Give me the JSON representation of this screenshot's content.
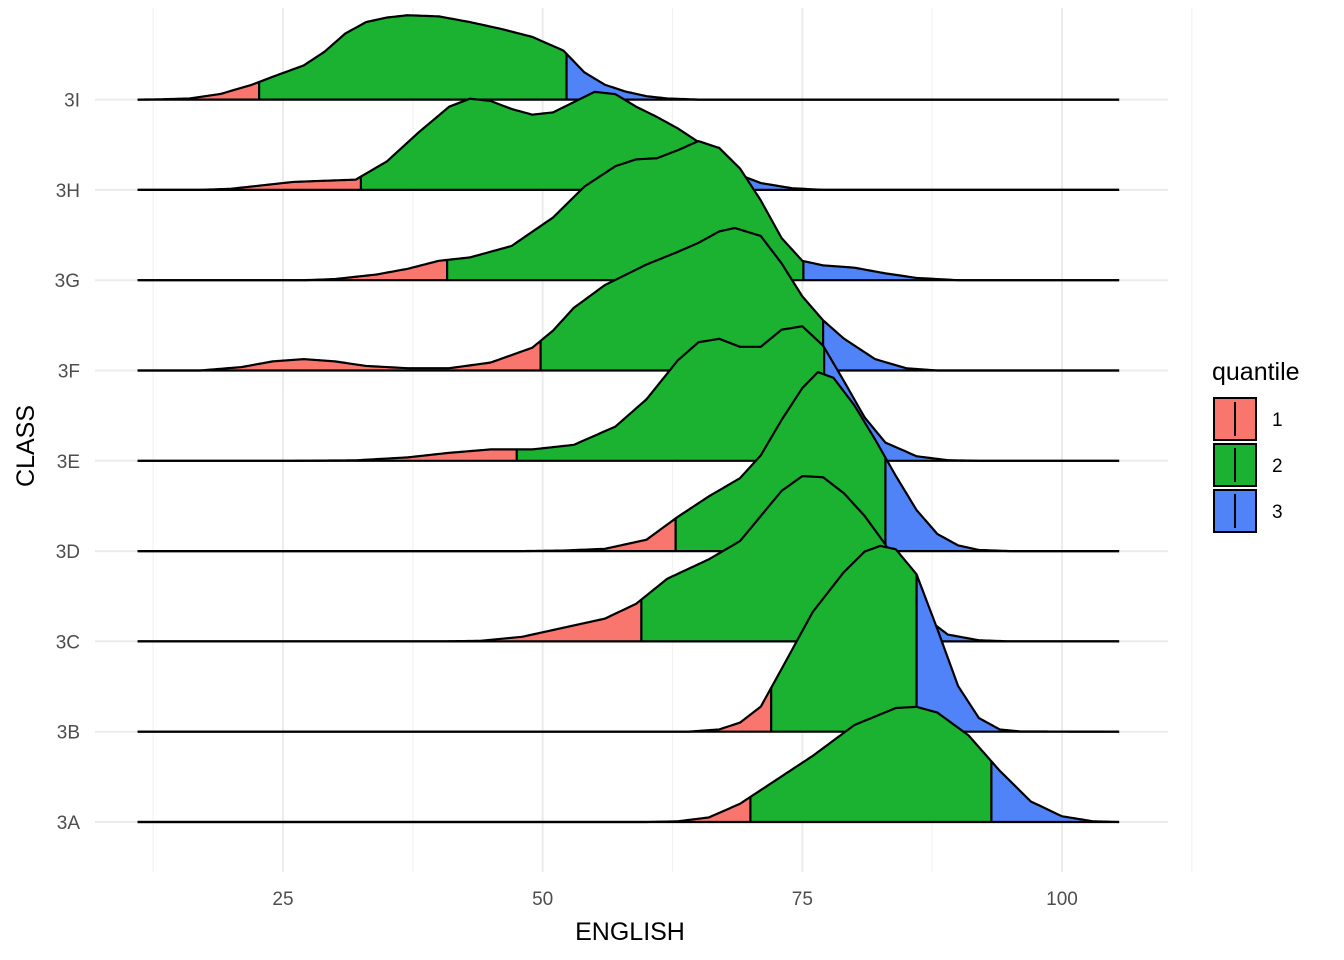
{
  "chart_data": {
    "type": "ridgeline",
    "title": "",
    "xlabel": "ENGLISH",
    "ylabel": "CLASS",
    "xlim": [
      10,
      108
    ],
    "xticks": [
      25,
      50,
      75,
      100
    ],
    "grid": true,
    "legend": {
      "title": "quantile",
      "position": "right",
      "entries": [
        {
          "label": "1",
          "color": "#F8766D"
        },
        {
          "label": "2",
          "color": "#1AB230"
        },
        {
          "label": "3",
          "color": "#5083F7"
        }
      ]
    },
    "categories": [
      "3A",
      "3B",
      "3C",
      "3D",
      "3E",
      "3F",
      "3G",
      "3H",
      "3I"
    ],
    "series": [
      {
        "class": "3A",
        "q1": 70,
        "q2": 93.2,
        "density": [
          [
            11,
            0
          ],
          [
            60,
            0
          ],
          [
            63,
            0.006
          ],
          [
            66,
            0.04
          ],
          [
            69,
            0.16
          ],
          [
            72,
            0.34
          ],
          [
            76,
            0.58
          ],
          [
            80,
            0.85
          ],
          [
            84,
            1.0
          ],
          [
            86,
            1.01
          ],
          [
            88,
            0.96
          ],
          [
            91,
            0.76
          ],
          [
            94,
            0.45
          ],
          [
            97,
            0.18
          ],
          [
            100,
            0.05
          ],
          [
            103,
            0.006
          ],
          [
            105.5,
            0
          ]
        ]
      },
      {
        "class": "3B",
        "q1": 72,
        "q2": 86,
        "density": [
          [
            11,
            0
          ],
          [
            64,
            0
          ],
          [
            67,
            0.02
          ],
          [
            69,
            0.08
          ],
          [
            71,
            0.22
          ],
          [
            73,
            0.55
          ],
          [
            76,
            1.05
          ],
          [
            79,
            1.4
          ],
          [
            81,
            1.58
          ],
          [
            82.5,
            1.63
          ],
          [
            84,
            1.6
          ],
          [
            86,
            1.38
          ],
          [
            88,
            0.9
          ],
          [
            90,
            0.4
          ],
          [
            92,
            0.12
          ],
          [
            94,
            0.02
          ],
          [
            96,
            0.002
          ],
          [
            105.5,
            0
          ]
        ]
      },
      {
        "class": "3C",
        "q1": 59.5,
        "q2": 86,
        "density": [
          [
            11,
            0
          ],
          [
            40,
            0
          ],
          [
            44,
            0.005
          ],
          [
            48,
            0.04
          ],
          [
            52,
            0.12
          ],
          [
            56,
            0.2
          ],
          [
            59,
            0.33
          ],
          [
            62,
            0.55
          ],
          [
            66,
            0.72
          ],
          [
            69,
            0.88
          ],
          [
            71,
            1.1
          ],
          [
            73,
            1.32
          ],
          [
            75,
            1.45
          ],
          [
            77,
            1.44
          ],
          [
            79,
            1.3
          ],
          [
            81,
            1.1
          ],
          [
            83,
            0.85
          ],
          [
            85,
            0.5
          ],
          [
            87,
            0.2
          ],
          [
            89,
            0.06
          ],
          [
            92,
            0.01
          ],
          [
            95,
            0
          ],
          [
            105.5,
            0
          ]
        ]
      },
      {
        "class": "3D",
        "q1": 62.8,
        "q2": 83,
        "density": [
          [
            11,
            0
          ],
          [
            48,
            0
          ],
          [
            52,
            0.005
          ],
          [
            56,
            0.02
          ],
          [
            60,
            0.1
          ],
          [
            63,
            0.3
          ],
          [
            66,
            0.48
          ],
          [
            69,
            0.64
          ],
          [
            71,
            0.84
          ],
          [
            73,
            1.15
          ],
          [
            75,
            1.43
          ],
          [
            76.5,
            1.57
          ],
          [
            78,
            1.52
          ],
          [
            80,
            1.28
          ],
          [
            82,
            0.98
          ],
          [
            84,
            0.66
          ],
          [
            86,
            0.36
          ],
          [
            88,
            0.15
          ],
          [
            90,
            0.05
          ],
          [
            92,
            0.01
          ],
          [
            95,
            0
          ],
          [
            105.5,
            0
          ]
        ]
      },
      {
        "class": "3E",
        "q1": 47.5,
        "q2": 77.1,
        "density": [
          [
            11,
            0
          ],
          [
            26,
            0
          ],
          [
            32,
            0.004
          ],
          [
            37,
            0.03
          ],
          [
            41,
            0.07
          ],
          [
            45,
            0.1
          ],
          [
            49,
            0.1
          ],
          [
            53,
            0.14
          ],
          [
            57,
            0.3
          ],
          [
            60,
            0.54
          ],
          [
            63,
            0.88
          ],
          [
            65,
            1.04
          ],
          [
            67,
            1.07
          ],
          [
            69,
            1.0
          ],
          [
            71,
            1.0
          ],
          [
            73,
            1.15
          ],
          [
            75,
            1.18
          ],
          [
            77,
            1.01
          ],
          [
            79,
            0.7
          ],
          [
            81,
            0.38
          ],
          [
            83,
            0.16
          ],
          [
            86,
            0.04
          ],
          [
            89,
            0.005
          ],
          [
            92,
            0
          ],
          [
            105.5,
            0
          ]
        ]
      },
      {
        "class": "3F",
        "q1": 49.8,
        "q2": 77,
        "density": [
          [
            11,
            0
          ],
          [
            17,
            0
          ],
          [
            21,
            0.03
          ],
          [
            24,
            0.08
          ],
          [
            27,
            0.1
          ],
          [
            30,
            0.08
          ],
          [
            33,
            0.04
          ],
          [
            37,
            0.02
          ],
          [
            41,
            0.02
          ],
          [
            45,
            0.07
          ],
          [
            49,
            0.2
          ],
          [
            51,
            0.35
          ],
          [
            53,
            0.55
          ],
          [
            56,
            0.75
          ],
          [
            60,
            0.93
          ],
          [
            63,
            1.04
          ],
          [
            65,
            1.12
          ],
          [
            67,
            1.22
          ],
          [
            68.5,
            1.25
          ],
          [
            71,
            1.18
          ],
          [
            73,
            0.94
          ],
          [
            75,
            0.65
          ],
          [
            77,
            0.44
          ],
          [
            79,
            0.28
          ],
          [
            82,
            0.1
          ],
          [
            85,
            0.02
          ],
          [
            88,
            0
          ],
          [
            105.5,
            0
          ]
        ]
      },
      {
        "class": "3G",
        "q1": 40.8,
        "q2": 75.1,
        "density": [
          [
            11,
            0
          ],
          [
            27,
            0
          ],
          [
            30,
            0.01
          ],
          [
            34,
            0.05
          ],
          [
            37,
            0.1
          ],
          [
            40,
            0.17
          ],
          [
            43,
            0.2
          ],
          [
            47,
            0.3
          ],
          [
            51,
            0.55
          ],
          [
            54,
            0.82
          ],
          [
            57,
            1.0
          ],
          [
            59,
            1.06
          ],
          [
            61,
            1.07
          ],
          [
            63,
            1.14
          ],
          [
            65,
            1.22
          ],
          [
            67,
            1.16
          ],
          [
            69,
            0.98
          ],
          [
            71,
            0.7
          ],
          [
            73,
            0.37
          ],
          [
            75,
            0.17
          ],
          [
            77,
            0.13
          ],
          [
            80,
            0.11
          ],
          [
            83,
            0.06
          ],
          [
            86,
            0.02
          ],
          [
            90,
            0
          ],
          [
            105.5,
            0
          ]
        ]
      },
      {
        "class": "3H",
        "q1": 32.5,
        "q2": 64.8,
        "density": [
          [
            11,
            0
          ],
          [
            17,
            0
          ],
          [
            20,
            0.01
          ],
          [
            23,
            0.04
          ],
          [
            26,
            0.07
          ],
          [
            29,
            0.08
          ],
          [
            32,
            0.09
          ],
          [
            35,
            0.25
          ],
          [
            38,
            0.5
          ],
          [
            41,
            0.73
          ],
          [
            43,
            0.8
          ],
          [
            45,
            0.78
          ],
          [
            47,
            0.71
          ],
          [
            49,
            0.66
          ],
          [
            51,
            0.68
          ],
          [
            53,
            0.77
          ],
          [
            55,
            0.86
          ],
          [
            57,
            0.84
          ],
          [
            59,
            0.73
          ],
          [
            61,
            0.64
          ],
          [
            63,
            0.54
          ],
          [
            65,
            0.42
          ],
          [
            67,
            0.25
          ],
          [
            69,
            0.13
          ],
          [
            71,
            0.06
          ],
          [
            74,
            0.015
          ],
          [
            77,
            0
          ],
          [
            105.5,
            0
          ]
        ]
      },
      {
        "class": "3I",
        "q1": 22.7,
        "q2": 52.3,
        "density": [
          [
            11,
            0
          ],
          [
            13,
            0.002
          ],
          [
            16,
            0.01
          ],
          [
            19,
            0.05
          ],
          [
            22,
            0.13
          ],
          [
            24,
            0.2
          ],
          [
            27,
            0.3
          ],
          [
            29,
            0.42
          ],
          [
            31,
            0.58
          ],
          [
            33,
            0.68
          ],
          [
            35,
            0.72
          ],
          [
            37,
            0.74
          ],
          [
            40,
            0.73
          ],
          [
            43,
            0.68
          ],
          [
            46,
            0.62
          ],
          [
            49,
            0.55
          ],
          [
            52,
            0.43
          ],
          [
            54,
            0.24
          ],
          [
            56,
            0.13
          ],
          [
            58,
            0.07
          ],
          [
            60,
            0.03
          ],
          [
            62,
            0.01
          ],
          [
            65,
            0
          ],
          [
            105.5,
            0
          ]
        ]
      }
    ]
  }
}
